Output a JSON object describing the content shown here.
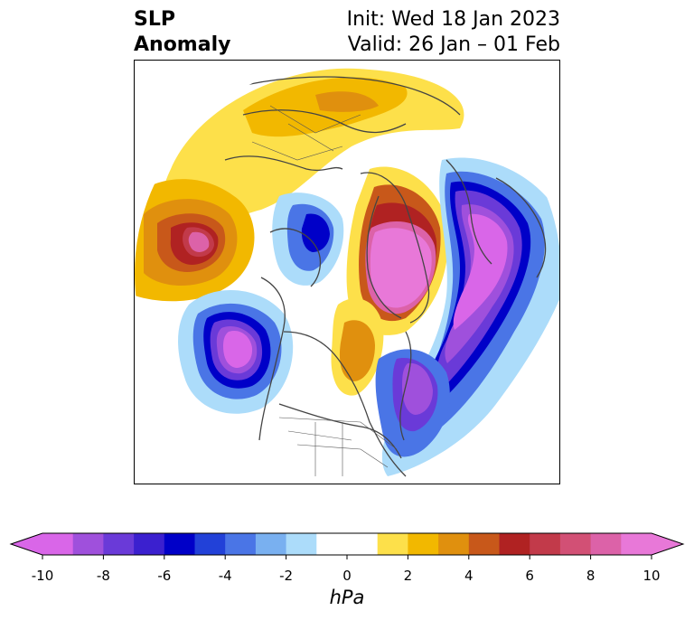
{
  "title": {
    "left_line1": "SLP",
    "left_line2": "Anomaly",
    "right_line1": "Init: Wed 18 Jan 2023",
    "right_line2": "Valid: 26 Jan – 01 Feb"
  },
  "colorbar": {
    "units": "hPa",
    "ticks": [
      "-10",
      "-8",
      "-6",
      "-4",
      "-2",
      "0",
      "2",
      "4",
      "6",
      "8",
      "10"
    ],
    "tick_values": [
      -10,
      -8,
      -6,
      -4,
      -2,
      0,
      2,
      4,
      6,
      8,
      10
    ],
    "colors": [
      "#d966e8",
      "#9f50dc",
      "#6a3ad8",
      "#3b20cf",
      "#0000c8",
      "#2241d8",
      "#4a75e6",
      "#79b0f0",
      "#acdcfa",
      "#ffffff",
      "#ffffff",
      "#fde04a",
      "#f2b800",
      "#e0900e",
      "#c8581a",
      "#b02222",
      "#c23a4a",
      "#d25075",
      "#dc62a8",
      "#e878d8"
    ],
    "min_color": "#d966e8",
    "max_color": "#e878d8"
  },
  "map": {
    "projection": "north-polar-stereographic",
    "coastline_color": "#444444"
  }
}
